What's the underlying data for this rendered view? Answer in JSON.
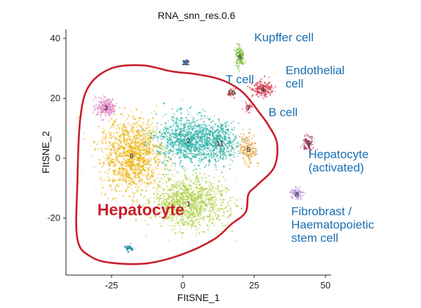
{
  "chart_data": {
    "type": "scatter",
    "title": "RNA_snn_res.0.6",
    "xlabel": "FItSNE_1",
    "ylabel": "FItSNE_2",
    "xlim": [
      -41,
      52
    ],
    "ylim": [
      -39,
      43
    ],
    "xticks": [
      -25,
      0,
      25,
      50
    ],
    "yticks": [
      40,
      20,
      0,
      -20
    ],
    "x_tick_labels": [
      "-25",
      "0",
      "25",
      "50"
    ],
    "y_tick_labels": [
      "40",
      "20",
      "0",
      "-20"
    ],
    "grid": false,
    "legend": "none",
    "clusters": [
      {
        "id": "0",
        "x": -18,
        "y": 1,
        "sx": 10,
        "sy": 11,
        "n": 1400,
        "color": "#ecb71b"
      },
      {
        "id": "1",
        "x": 2,
        "y": -15,
        "sx": 12,
        "sy": 7.5,
        "n": 1200,
        "color": "#b1cf47"
      },
      {
        "id": "2",
        "x": 2,
        "y": 6,
        "sx": 10,
        "sy": 7.5,
        "n": 1000,
        "color": "#2eb5aa"
      },
      {
        "id": "11",
        "x": 13,
        "y": 5,
        "sx": 6,
        "sy": 6,
        "n": 400,
        "color": "#33b0a5"
      },
      {
        "id": "3",
        "x": -27,
        "y": 17,
        "sx": 3.2,
        "sy": 2.8,
        "n": 260,
        "color": "#e38ac5"
      },
      {
        "id": "4",
        "x": 28,
        "y": 23,
        "sx": 3.2,
        "sy": 2.2,
        "n": 180,
        "color": "#d63a4f"
      },
      {
        "id": "5",
        "x": 23,
        "y": 3,
        "sx": 2.5,
        "sy": 5,
        "n": 160,
        "color": "#e8a33a"
      },
      {
        "id": "6",
        "x": 20,
        "y": 34,
        "sx": 1.4,
        "sy": 3,
        "n": 120,
        "color": "#7fbf3f"
      },
      {
        "id": "7",
        "x": 23,
        "y": 17,
        "sx": 1.4,
        "sy": 1.2,
        "n": 40,
        "color": "#e8587a"
      },
      {
        "id": "8",
        "x": 40,
        "y": -12,
        "sx": 2.2,
        "sy": 1.6,
        "n": 90,
        "color": "#b38ad6"
      },
      {
        "id": "9",
        "x": 44,
        "y": 5,
        "sx": 1.8,
        "sy": 2.2,
        "n": 90,
        "color": "#a6285c"
      },
      {
        "id": "10",
        "x": 17,
        "y": 22,
        "sx": 1.2,
        "sy": 1.2,
        "n": 40,
        "color": "#e0685a"
      },
      {
        "id": "12",
        "x": 1,
        "y": 32,
        "sx": 0.7,
        "sy": 0.6,
        "n": 25,
        "color": "#2b66b5"
      },
      {
        "id": "",
        "x": -19,
        "y": -30,
        "sx": 1.5,
        "sy": 1.0,
        "n": 40,
        "color": "#1f8ea3"
      }
    ],
    "hepatocyte_outline": [
      [
        -14,
        31
      ],
      [
        -4,
        29
      ],
      [
        5,
        28
      ],
      [
        14,
        26
      ],
      [
        21,
        22
      ],
      [
        27,
        15
      ],
      [
        30,
        11
      ],
      [
        33,
        5
      ],
      [
        32,
        -3
      ],
      [
        26,
        -9
      ],
      [
        23,
        -12
      ],
      [
        22,
        -18
      ],
      [
        17,
        -22
      ],
      [
        11,
        -27
      ],
      [
        0,
        -32
      ],
      [
        -12,
        -35
      ],
      [
        -24,
        -35
      ],
      [
        -32,
        -33
      ],
      [
        -37,
        -27
      ],
      [
        -37,
        -8
      ],
      [
        -36,
        13
      ],
      [
        -33,
        24
      ],
      [
        -25,
        30
      ]
    ],
    "annotations": [
      {
        "id": "kupffer",
        "lines": [
          "Kupffer cell"
        ],
        "x": 25,
        "y": 39
      },
      {
        "id": "tcell",
        "lines": [
          "T cell"
        ],
        "x": 15,
        "y": 25
      },
      {
        "id": "endo",
        "lines": [
          "Endothelial",
          "cell"
        ],
        "x": 36,
        "y": 28
      },
      {
        "id": "bcell",
        "lines": [
          "B cell"
        ],
        "x": 30,
        "y": 14
      },
      {
        "id": "hepact",
        "lines": [
          "Hepatocyte",
          "(activated)"
        ],
        "x": 44,
        "y": 0
      },
      {
        "id": "fibro",
        "lines": [
          "Fibrobrast /",
          "Haematopoietic",
          "stem cell"
        ],
        "x": 38,
        "y": -19
      },
      {
        "id": "hepatocyte",
        "lines": [
          "Hepatocyte"
        ],
        "x": -30,
        "y": -19
      }
    ]
  }
}
